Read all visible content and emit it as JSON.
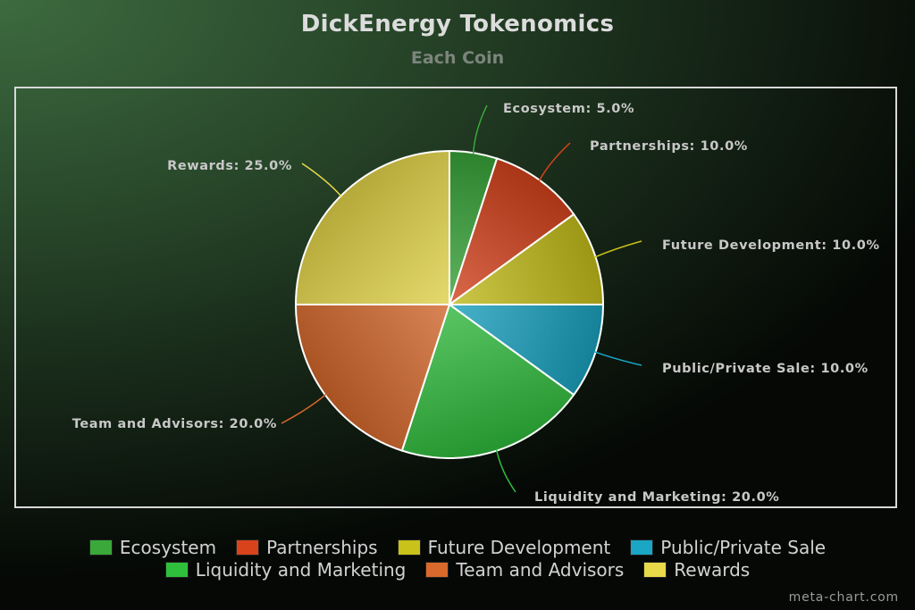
{
  "chart_data": {
    "type": "pie",
    "title": "DickEnergy Tokenomics",
    "subtitle": "Each Coin",
    "categories": [
      "Ecosystem",
      "Partnerships",
      "Future Development",
      "Public/Private Sale",
      "Liquidity and Marketing",
      "Team and Advisors",
      "Rewards"
    ],
    "values": [
      5.0,
      10.0,
      10.0,
      10.0,
      20.0,
      20.0,
      25.0
    ],
    "labels": [
      "Ecosystem: 5.0%",
      "Partnerships: 10.0%",
      "Future Development: 10.0%",
      "Public/Private Sale: 10.0%",
      "Liquidity and Marketing: 20.0%",
      "Team and Advisors: 20.0%",
      "Rewards: 25.0%"
    ],
    "colors": [
      "#3aa83a",
      "#d9431c",
      "#c8c21a",
      "#1aa6c4",
      "#2fbf3c",
      "#d9692c",
      "#e8d94a"
    ],
    "legend_position": "bottom"
  },
  "legend": {
    "rows": [
      [
        {
          "label": "Ecosystem",
          "color": "#3aa83a"
        },
        {
          "label": "Partnerships",
          "color": "#d9431c"
        },
        {
          "label": "Future Development",
          "color": "#c8c21a"
        },
        {
          "label": "Public/Private Sale",
          "color": "#1aa6c4"
        }
      ],
      [
        {
          "label": "Liquidity and Marketing",
          "color": "#2fbf3c"
        },
        {
          "label": "Team and Advisors",
          "color": "#d9692c"
        },
        {
          "label": "Rewards",
          "color": "#e8d94a"
        }
      ]
    ]
  },
  "credit": "meta-chart.com"
}
